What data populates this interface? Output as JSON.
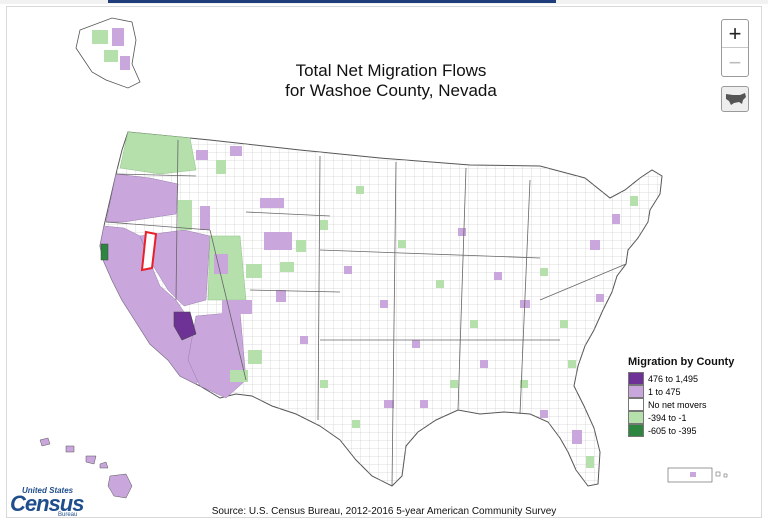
{
  "title_line1": "Total Net Migration Flows",
  "title_line2": "for Washoe County, Nevada",
  "source": "Source: U.S. Census Bureau, 2012-2016 5-year American Community Survey",
  "controls": {
    "zoom_in": "+",
    "zoom_out": "−",
    "extent_icon": "usa-extent-icon"
  },
  "legend": {
    "title": "Migration by County",
    "items": [
      {
        "label": "476 to 1,495",
        "color": "#6e3196"
      },
      {
        "label": "1 to 475",
        "color": "#c9a6dc"
      },
      {
        "label": "No net movers",
        "color": "#ffffff"
      },
      {
        "label": "-394 to -1",
        "color": "#b5e0ac"
      },
      {
        "label": "-605 to -395",
        "color": "#2e8540"
      }
    ]
  },
  "logo": {
    "top": "United States",
    "main": "Census",
    "sub": "Bureau"
  },
  "colors": {
    "selected_county_outline": "#e8202a",
    "county_border": "#b3b3b3",
    "state_border": "#555555"
  }
}
